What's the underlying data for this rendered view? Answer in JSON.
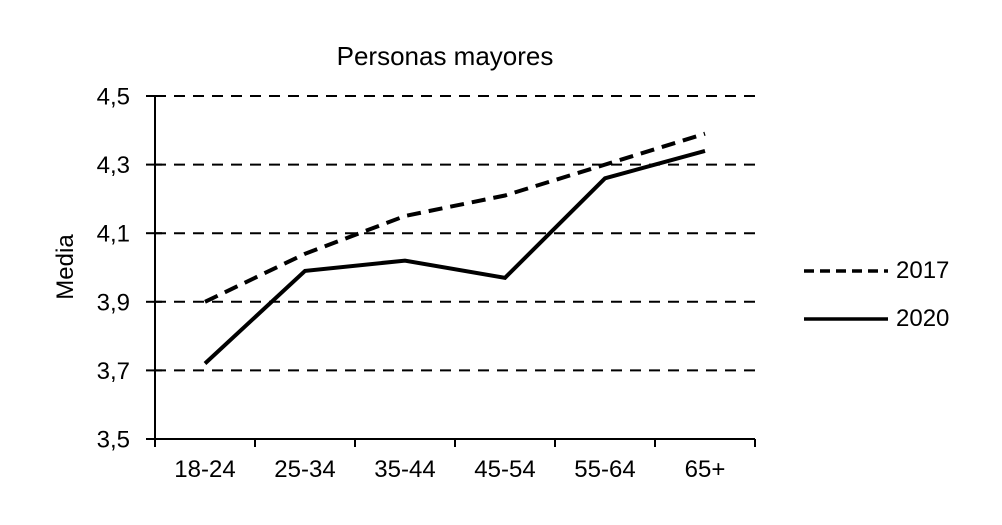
{
  "chart_data": {
    "type": "line",
    "title": "Personas mayores",
    "ylabel": "Media",
    "xlabel": "",
    "categories": [
      "18-24",
      "25-34",
      "35-44",
      "45-54",
      "55-64",
      "65+"
    ],
    "series": [
      {
        "name": "2017",
        "style": "dashed",
        "values": [
          3.9,
          4.04,
          4.15,
          4.21,
          4.3,
          4.39
        ]
      },
      {
        "name": "2020",
        "style": "solid",
        "values": [
          3.72,
          3.99,
          4.02,
          3.97,
          4.26,
          4.34
        ]
      }
    ],
    "ylim": [
      3.5,
      4.5
    ],
    "yticks": [
      {
        "value": 3.5,
        "label": "3,5"
      },
      {
        "value": 3.7,
        "label": "3,7"
      },
      {
        "value": 3.9,
        "label": "3,9"
      },
      {
        "value": 4.1,
        "label": "4,1"
      },
      {
        "value": 4.3,
        "label": "4,3"
      },
      {
        "value": 4.5,
        "label": "4,5"
      }
    ],
    "grid": "horizontal-dashed",
    "legend_position": "right-outside",
    "colors": {
      "line": "#000000",
      "background": "#ffffff",
      "text": "#000000"
    }
  }
}
